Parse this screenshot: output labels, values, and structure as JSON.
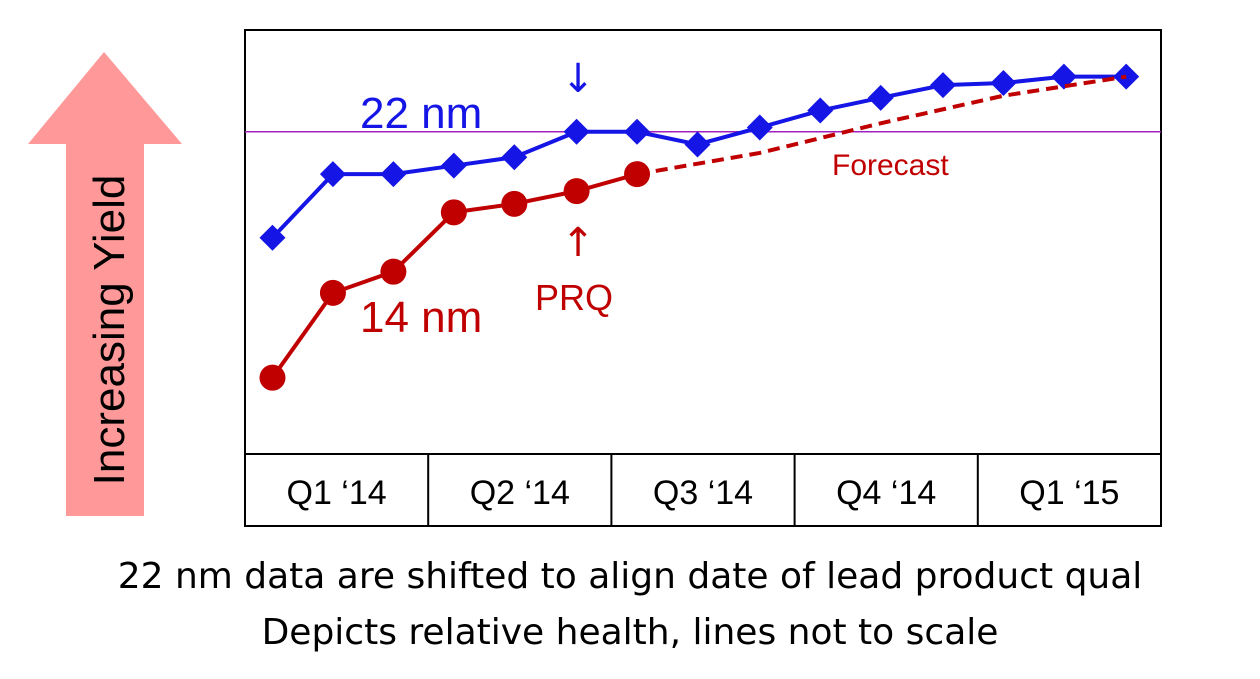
{
  "chart_data": {
    "type": "line",
    "y_axis_label": "Increasing Yield",
    "categories": [
      "Q1 ‘14",
      "Q2 ‘14",
      "Q3 ‘14",
      "Q4 ‘14",
      "Q1 ‘15"
    ],
    "ylim": [
      0,
      100
    ],
    "grid": false,
    "series": [
      {
        "name": "22 nm",
        "marker": "diamond",
        "color": "#1515e6",
        "x": [
          0.15,
          0.48,
          0.81,
          1.14,
          1.47,
          1.81,
          2.14,
          2.47,
          2.81,
          3.14,
          3.47,
          3.81,
          4.14,
          4.47,
          4.81
        ],
        "values": [
          51,
          66,
          66,
          68,
          70,
          76,
          76,
          73,
          77,
          81,
          84,
          87,
          87.5,
          89,
          89
        ],
        "style": "solid"
      },
      {
        "name": "14 nm",
        "marker": "circle",
        "color": "#c00000",
        "x": [
          0.15,
          0.48,
          0.81,
          1.14,
          1.47,
          1.81,
          2.14
        ],
        "values": [
          18,
          38,
          43,
          57,
          59,
          62,
          66
        ],
        "style": "solid"
      },
      {
        "name": "Forecast",
        "marker": "none",
        "color": "#c00000",
        "x": [
          2.14,
          2.81,
          3.47,
          4.14,
          4.81
        ],
        "values": [
          66,
          71,
          78,
          84.5,
          89
        ],
        "style": "dashed"
      }
    ],
    "reference_line": {
      "value": 76,
      "color": "#a020c0"
    },
    "annotations": {
      "label_22nm": "22 nm",
      "label_14nm": "14 nm",
      "forecast": "Forecast",
      "prq": "PRQ",
      "down_arrow": "↓",
      "up_arrow": "↑"
    }
  },
  "footer": {
    "line1": "22 nm data are shifted to align date of lead product qual",
    "line2": "Depicts relative health, lines not to scale"
  },
  "colors": {
    "arrow_fill": "#ff9999",
    "series_22nm": "#1515e6",
    "series_14nm": "#c00000",
    "reference": "#a020c0"
  }
}
